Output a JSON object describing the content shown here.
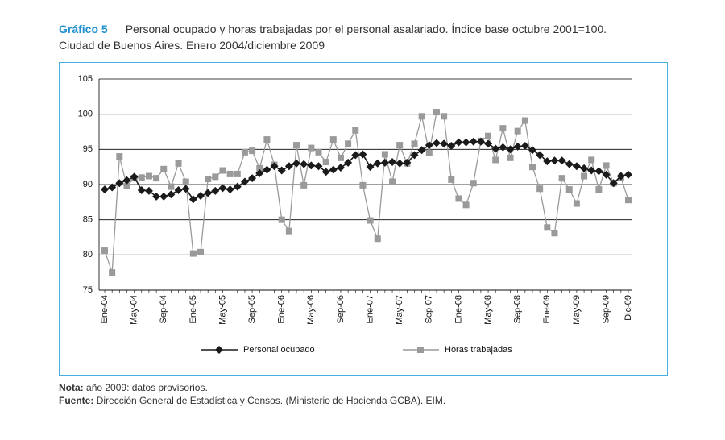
{
  "chart_data": {
    "type": "line",
    "figure_label": "Gráfico 5",
    "title": "Personal ocupado y horas trabajadas por el personal asalariado. Índice base octubre 2001=100.",
    "subtitle": "Ciudad de Buenos Aires. Enero 2004/diciembre 2009",
    "categories": [
      "Ene-04",
      null,
      null,
      null,
      "May-04",
      null,
      null,
      null,
      "Sep-04",
      null,
      null,
      null,
      "Ene-05",
      null,
      null,
      null,
      "May-05",
      null,
      null,
      null,
      "Sep-05",
      null,
      null,
      null,
      "Ene-06",
      null,
      null,
      null,
      "May-06",
      null,
      null,
      null,
      "Sep-06",
      null,
      null,
      null,
      "Ene-07",
      null,
      null,
      null,
      "May-07",
      null,
      null,
      null,
      "Sep-07",
      null,
      null,
      null,
      "Ene-08",
      null,
      null,
      null,
      "May-08",
      null,
      null,
      null,
      "Sep-08",
      null,
      null,
      null,
      "Ene-09",
      null,
      null,
      null,
      "May-09",
      null,
      null,
      null,
      "Sep-09",
      null,
      null,
      "Dic-09"
    ],
    "series": [
      {
        "name": "Personal ocupado",
        "color": "#1a1a1a",
        "marker": "diamond",
        "values": [
          89.3,
          89.6,
          90.2,
          90.6,
          91.1,
          89.2,
          89.1,
          88.3,
          88.3,
          88.6,
          89.2,
          89.4,
          87.9,
          88.4,
          88.8,
          89.1,
          89.5,
          89.3,
          89.7,
          90.4,
          90.9,
          91.6,
          92.1,
          92.6,
          92.0,
          92.6,
          93.0,
          92.9,
          92.7,
          92.6,
          91.8,
          92.1,
          92.4,
          93.1,
          94.2,
          94.3,
          92.5,
          93.0,
          93.1,
          93.2,
          93.0,
          93.1,
          94.2,
          94.9,
          95.6,
          95.9,
          95.8,
          95.5,
          96.0,
          96.0,
          96.1,
          96.1,
          95.8,
          95.1,
          95.3,
          95.0,
          95.4,
          95.5,
          94.9,
          94.2,
          93.3,
          93.4,
          93.4,
          92.9,
          92.6,
          92.3,
          92.0,
          91.9,
          91.4,
          90.2,
          91.2,
          91.4
        ]
      },
      {
        "name": "Horas trabajadas",
        "color": "#9a9a9a",
        "marker": "square",
        "values": [
          80.6,
          77.5,
          94.0,
          89.8,
          90.9,
          91.0,
          91.2,
          90.9,
          92.2,
          89.7,
          93.0,
          90.4,
          80.2,
          80.4,
          90.8,
          91.1,
          92.0,
          91.5,
          91.5,
          94.6,
          94.8,
          92.3,
          96.4,
          92.8,
          85.0,
          83.4,
          95.6,
          89.9,
          95.2,
          94.6,
          93.2,
          96.4,
          93.8,
          95.8,
          97.7,
          89.9,
          84.9,
          82.3,
          94.3,
          90.4,
          95.6,
          93.0,
          95.8,
          99.7,
          94.5,
          100.3,
          99.7,
          90.7,
          88.0,
          87.1,
          90.2,
          96.2,
          96.9,
          93.5,
          98.0,
          93.8,
          97.6,
          99.1,
          92.5,
          89.4,
          83.9,
          83.1,
          90.9,
          89.3,
          87.3,
          91.2,
          93.5,
          89.3,
          92.7,
          90.2,
          91.0,
          87.8
        ]
      }
    ],
    "ylim": [
      75,
      105
    ],
    "yticks": [
      75,
      80,
      85,
      90,
      95,
      100,
      105
    ],
    "grid": true,
    "legend": "bottom"
  },
  "notes": {
    "nota_label": "Nota:",
    "nota": "año 2009: datos provisorios.",
    "fuente_label": "Fuente:",
    "fuente": "Dirección General de Estadística y Censos. (Ministerio de Hacienda GCBA). EIM."
  }
}
